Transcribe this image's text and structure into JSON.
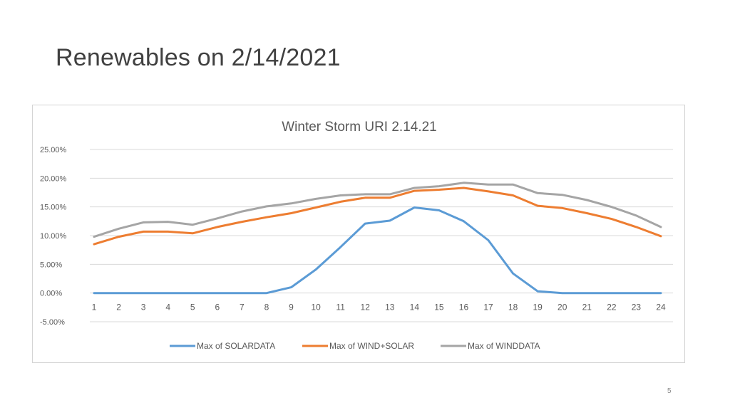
{
  "slide": {
    "title": "Renewables on 2/14/2021",
    "page_number": "5"
  },
  "chart_data": {
    "type": "line",
    "title": "Winter Storm URI 2.14.21",
    "xlabel": "",
    "ylabel": "",
    "categories": [
      "1",
      "2",
      "3",
      "4",
      "5",
      "6",
      "7",
      "8",
      "9",
      "10",
      "11",
      "12",
      "13",
      "14",
      "15",
      "16",
      "17",
      "18",
      "19",
      "20",
      "21",
      "22",
      "23",
      "24"
    ],
    "y_ticks": [
      "25.00%",
      "20.00%",
      "15.00%",
      "10.00%",
      "5.00%",
      "0.00%",
      "-5.00%"
    ],
    "y_tick_values": [
      25,
      20,
      15,
      10,
      5,
      0,
      -5
    ],
    "ylim": [
      -5,
      25
    ],
    "grid": true,
    "legend_position": "bottom",
    "series": [
      {
        "name": "Max of SOLARDATA",
        "color": "#5b9bd5",
        "values": [
          0,
          0,
          0,
          0,
          0,
          0,
          0,
          0,
          1.0,
          4.1,
          8.0,
          12.1,
          12.6,
          14.9,
          14.4,
          12.5,
          9.2,
          3.4,
          0.3,
          0,
          0,
          0,
          0,
          0
        ]
      },
      {
        "name": "Max of WIND+SOLAR",
        "color": "#ed7d31",
        "values": [
          8.5,
          9.8,
          10.7,
          10.7,
          10.4,
          11.5,
          12.4,
          13.2,
          13.9,
          14.9,
          15.9,
          16.6,
          16.6,
          17.8,
          18.0,
          18.3,
          17.7,
          17.0,
          15.2,
          14.8,
          13.9,
          12.9,
          11.5,
          9.9
        ]
      },
      {
        "name": "Max of WINDDATA",
        "color": "#a5a5a5",
        "values": [
          9.8,
          11.2,
          12.3,
          12.4,
          11.9,
          13.0,
          14.2,
          15.1,
          15.6,
          16.4,
          17.0,
          17.2,
          17.2,
          18.3,
          18.6,
          19.2,
          18.9,
          18.9,
          17.4,
          17.1,
          16.2,
          15.0,
          13.5,
          11.5
        ]
      }
    ]
  }
}
